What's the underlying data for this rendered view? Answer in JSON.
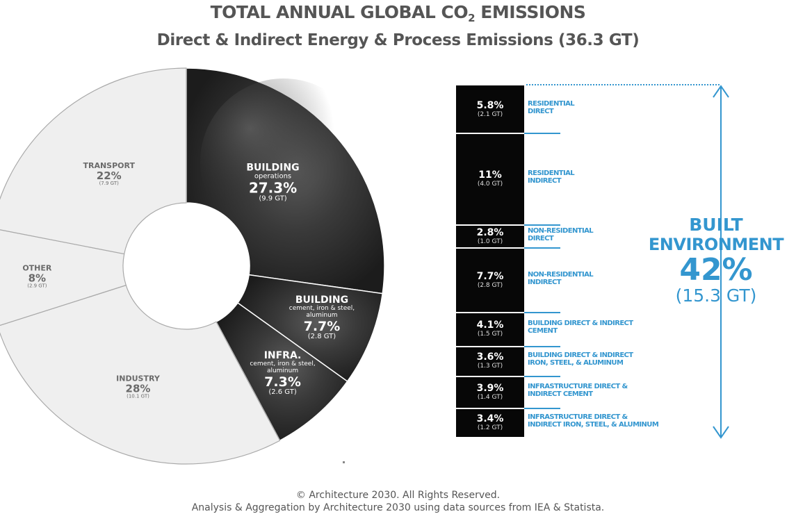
{
  "title": {
    "line1_prefix": "TOTAL ANNUAL GLOBAL CO",
    "line1_sub": "2",
    "line1_suffix": " EMISSIONS",
    "line2": "Direct & Indirect Energy & Process Emissions (36.3 GT)"
  },
  "chart_data": [
    {
      "type": "pie",
      "donut": true,
      "slices": [
        {
          "name": "BUILDING",
          "sub": "operations",
          "percent": 27.3,
          "percent_label": "27.3%",
          "gt_label": "(9.9 GT)",
          "color": "#3c3c3c"
        },
        {
          "name": "BUILDING",
          "sub": "cement, iron & steel, aluminum",
          "percent": 7.7,
          "percent_label": "7.7%",
          "gt_label": "(2.8 GT)",
          "color": "#2e2e2e"
        },
        {
          "name": "INFRA.",
          "sub": "cement, iron & steel, aluminum",
          "percent": 7.3,
          "percent_label": "7.3%",
          "gt_label": "(2.6 GT)",
          "color": "#383838"
        },
        {
          "name": "INDUSTRY",
          "sub": "",
          "percent": 28,
          "percent_label": "28%",
          "gt_label": "(10.1 GT)",
          "color": "#efefef"
        },
        {
          "name": "OTHER",
          "sub": "",
          "percent": 8,
          "percent_label": "8%",
          "gt_label": "(2.9 GT)",
          "color": "#efefef"
        },
        {
          "name": "TRANSPORT",
          "sub": "",
          "percent": 22,
          "percent_label": "22%",
          "gt_label": "(7.9 GT)",
          "color": "#efefef"
        }
      ]
    },
    {
      "type": "bar",
      "orientation": "stacked-vertical",
      "segments": [
        {
          "percent": 5.8,
          "percent_label": "5.8%",
          "gt_label": "(2.1 GT)",
          "label_line1": "RESIDENTIAL",
          "label_line2": "DIRECT"
        },
        {
          "percent": 11,
          "percent_label": "11%",
          "gt_label": "(4.0 GT)",
          "label_line1": "RESIDENTIAL",
          "label_line2": "INDIRECT"
        },
        {
          "percent": 2.8,
          "percent_label": "2.8%",
          "gt_label": "(1.0 GT)",
          "label_line1": "NON-RESIDENTIAL",
          "label_line2": "DIRECT"
        },
        {
          "percent": 7.7,
          "percent_label": "7.7%",
          "gt_label": "(2.8 GT)",
          "label_line1": "NON-RESIDENTIAL",
          "label_line2": "INDIRECT"
        },
        {
          "percent": 4.1,
          "percent_label": "4.1%",
          "gt_label": "(1.5 GT)",
          "label_line1": "BUILDING DIRECT & INDIRECT",
          "label_line2": "CEMENT"
        },
        {
          "percent": 3.6,
          "percent_label": "3.6%",
          "gt_label": "(1.3 GT)",
          "label_line1": "BUILDING DIRECT & INDIRECT",
          "label_line2": "IRON, STEEL, & ALUMINUM"
        },
        {
          "percent": 3.9,
          "percent_label": "3.9%",
          "gt_label": "(1.4 GT)",
          "label_line1": "INFRASTRUCTURE DIRECT &",
          "label_line2": "INDIRECT CEMENT"
        },
        {
          "percent": 3.4,
          "percent_label": "3.4%",
          "gt_label": "(1.2 GT)",
          "label_line1": "INFRASTRUCTURE DIRECT &",
          "label_line2": "INDIRECT IRON, STEEL, & ALUMINUM"
        }
      ],
      "total": {
        "line1": "BUILT",
        "line2": "ENVIRONMENT",
        "percent": "42%",
        "gt": "(15.3 GT)"
      }
    }
  ],
  "colors": {
    "accent_blue": "#3396cf",
    "bar_bg": "#070707",
    "light_slice": "#efefef"
  },
  "footer": {
    "line1": "© Architecture 2030. All Rights Reserved.",
    "line2": "Analysis & Aggregation by Architecture 2030 using data sources from IEA & Statista."
  }
}
